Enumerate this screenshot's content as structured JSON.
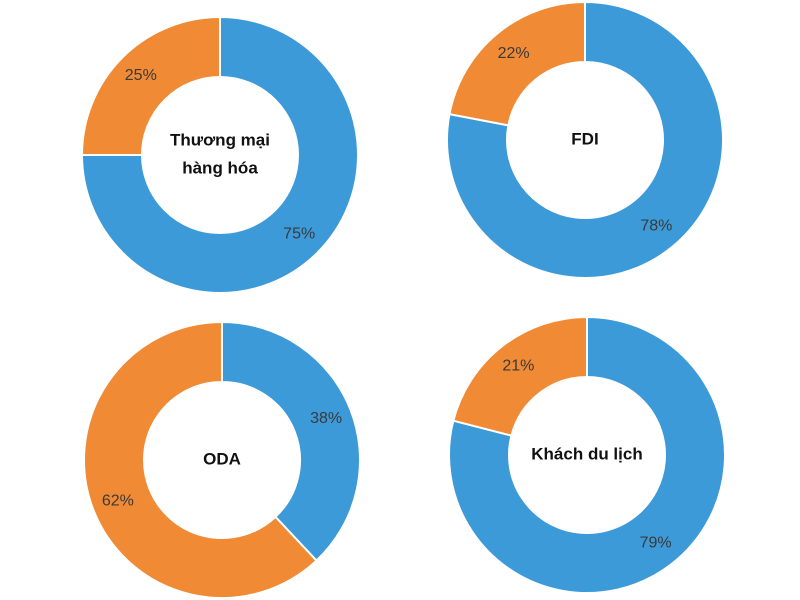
{
  "colors": {
    "blue": "#3d9ad8",
    "orange": "#f08a34"
  },
  "chart_data": [
    {
      "type": "pie",
      "center_label": [
        "Thương mại",
        "hàng hóa"
      ],
      "slices": [
        {
          "value": 75,
          "label": "75%",
          "color": "#3d9ad8"
        },
        {
          "value": 25,
          "label": "25%",
          "color": "#f08a34"
        }
      ]
    },
    {
      "type": "pie",
      "center_label": [
        "FDI"
      ],
      "slices": [
        {
          "value": 78,
          "label": "78%",
          "color": "#3d9ad8"
        },
        {
          "value": 22,
          "label": "22%",
          "color": "#f08a34"
        }
      ]
    },
    {
      "type": "pie",
      "center_label": [
        "ODA"
      ],
      "slices": [
        {
          "value": 38,
          "label": "38%",
          "color": "#3d9ad8"
        },
        {
          "value": 62,
          "label": "62%",
          "color": "#f08a34"
        }
      ]
    },
    {
      "type": "pie",
      "center_label": [
        "Khách du lịch"
      ],
      "slices": [
        {
          "value": 79,
          "label": "79%",
          "color": "#3d9ad8"
        },
        {
          "value": 21,
          "label": "21%",
          "color": "#f08a34"
        }
      ]
    }
  ]
}
